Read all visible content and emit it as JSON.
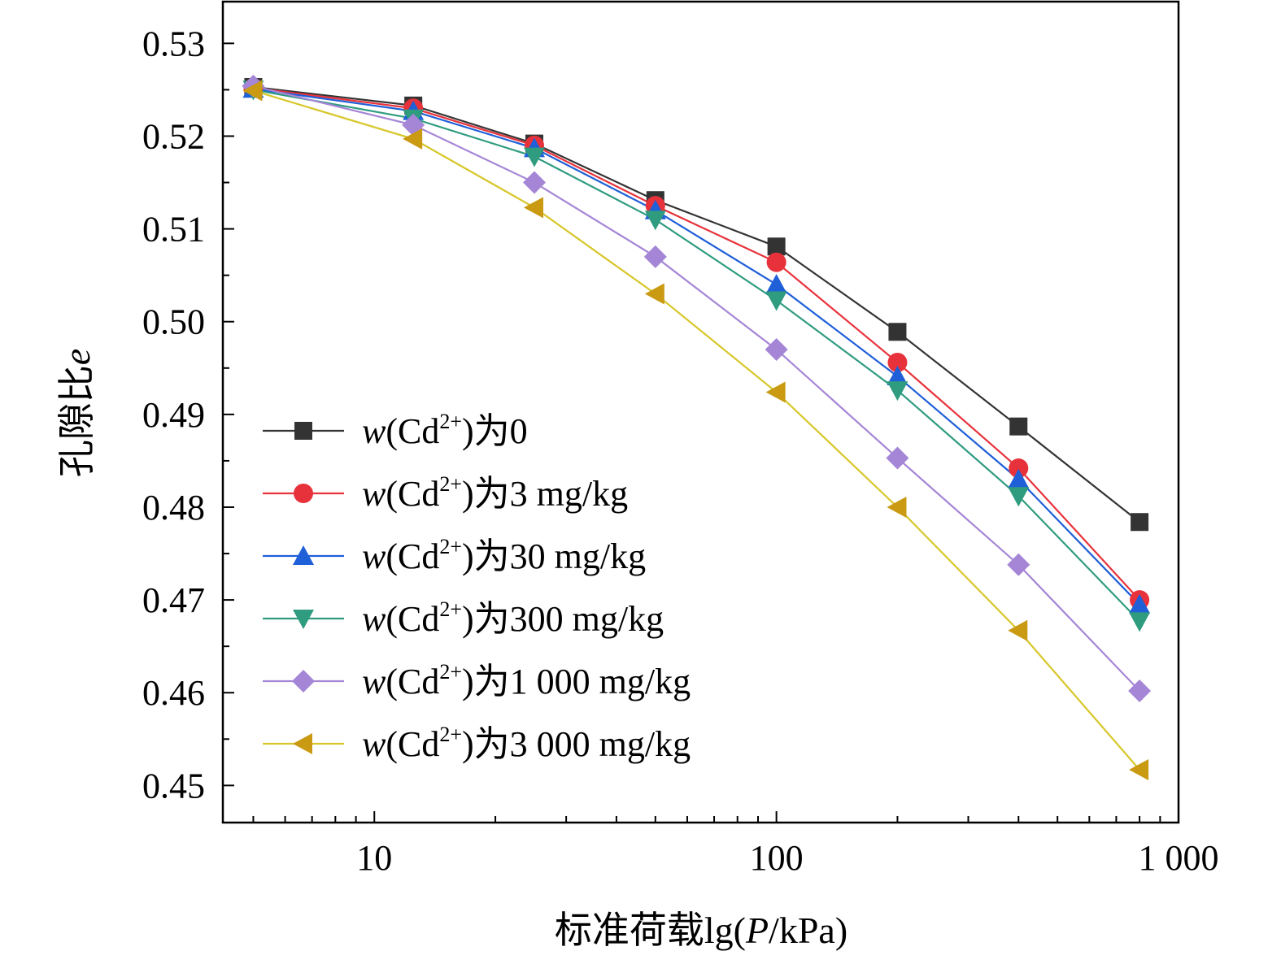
{
  "chart_data": {
    "type": "line",
    "x_scale": "log",
    "x_values": [
      5,
      12.5,
      25,
      50,
      100,
      200,
      400,
      800
    ],
    "xlim": [
      4.2,
      1000
    ],
    "ylim": [
      0.446,
      0.5345
    ],
    "x_ticks": [
      {
        "value": 10,
        "label": "10"
      },
      {
        "value": 100,
        "label": "100"
      },
      {
        "value": 1000,
        "label": "1 000"
      }
    ],
    "y_ticks": [
      {
        "value": 0.45,
        "label": "0.45"
      },
      {
        "value": 0.46,
        "label": "0.46"
      },
      {
        "value": 0.47,
        "label": "0.47"
      },
      {
        "value": 0.48,
        "label": "0.48"
      },
      {
        "value": 0.49,
        "label": "0.49"
      },
      {
        "value": 0.5,
        "label": "0.50"
      },
      {
        "value": 0.51,
        "label": "0.51"
      },
      {
        "value": 0.52,
        "label": "0.52"
      },
      {
        "value": 0.53,
        "label": "0.53"
      }
    ],
    "xlabel": "标准荷载lg(P/kPa)",
    "ylabel": "孔隙比e",
    "grid": false,
    "legend_position": "lower-left",
    "series": [
      {
        "name": "w(Cd2+)为0",
        "name_prefix": "w",
        "name_paren_open": "(Cd",
        "name_sup": "2+",
        "name_suffix": ")为0",
        "color": "#333333",
        "marker": "square",
        "values": [
          0.5253,
          0.5233,
          0.5192,
          0.5131,
          0.5081,
          0.4989,
          0.4887,
          0.4784
        ]
      },
      {
        "name": "w(Cd2+)为3 mg/kg",
        "name_prefix": "w",
        "name_paren_open": "(Cd",
        "name_sup": "2+",
        "name_suffix": ")为3 mg/kg",
        "color": "#e8323b",
        "marker": "circle",
        "values": [
          0.5252,
          0.523,
          0.519,
          0.5125,
          0.5064,
          0.4956,
          0.4842,
          0.47
        ]
      },
      {
        "name": "w(Cd2+)为30 mg/kg",
        "name_prefix": "w",
        "name_paren_open": "(Cd",
        "name_sup": "2+",
        "name_suffix": ")为30 mg/kg",
        "color": "#1f5fd8",
        "marker": "triangle-up",
        "values": [
          0.5251,
          0.5227,
          0.5187,
          0.512,
          0.504,
          0.4941,
          0.483,
          0.4695
        ]
      },
      {
        "name": "w(Cd2+)为300 mg/kg",
        "name_prefix": "w",
        "name_paren_open": "(Cd",
        "name_sup": "2+",
        "name_suffix": ")为300 mg/kg",
        "color": "#2f9c80",
        "marker": "triangle-down",
        "values": [
          0.525,
          0.5219,
          0.5178,
          0.511,
          0.5023,
          0.4926,
          0.4812,
          0.4677
        ]
      },
      {
        "name": "w(Cd2+)为1 000 mg/kg",
        "name_prefix": "w",
        "name_paren_open": "(Cd",
        "name_sup": "2+",
        "name_suffix": ")为1 000 mg/kg",
        "color": "#a585d6",
        "marker": "diamond",
        "values": [
          0.5254,
          0.5212,
          0.515,
          0.507,
          0.497,
          0.4853,
          0.4738,
          0.4602
        ]
      },
      {
        "name": "w(Cd2+)为3 000 mg/kg",
        "name_prefix": "w",
        "name_paren_open": "(Cd",
        "name_sup": "2+",
        "name_suffix": ")为3 000 mg/kg",
        "color": "#c99a12",
        "line_color": "#d7c72a",
        "marker": "triangle-left",
        "values": [
          0.5249,
          0.5197,
          0.5123,
          0.503,
          0.4924,
          0.48,
          0.4667,
          0.4517
        ]
      }
    ]
  }
}
